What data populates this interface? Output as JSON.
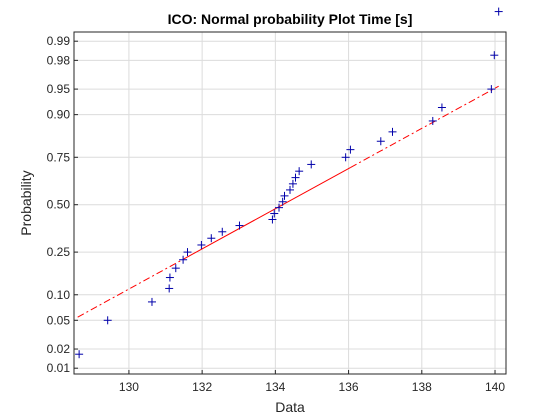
{
  "chart_data": {
    "type": "scatter",
    "title": "ICO: Normal probability Plot Time [s]",
    "xlabel": "Data",
    "ylabel": "Probability",
    "xlim": [
      128.5,
      140.3
    ],
    "ylim_probability": [
      0.008,
      0.993
    ],
    "y_scale": "normal-probability",
    "grid": true,
    "x_ticks": [
      130,
      132,
      134,
      136,
      138,
      140
    ],
    "x_tick_labels": [
      "130",
      "132",
      "134",
      "136",
      "138",
      "140"
    ],
    "y_ticks": [
      0.01,
      0.02,
      0.05,
      0.1,
      0.25,
      0.5,
      0.75,
      0.9,
      0.95,
      0.98,
      0.99
    ],
    "y_tick_labels": [
      "0.01",
      "0.02",
      "0.05",
      "0.10",
      "0.25",
      "0.50",
      "0.75",
      "0.90",
      "0.95",
      "0.98",
      "0.99"
    ],
    "points": [
      {
        "x": 128.64,
        "p": 0.0167
      },
      {
        "x": 129.42,
        "p": 0.05
      },
      {
        "x": 130.63,
        "p": 0.0833
      },
      {
        "x": 131.1,
        "p": 0.1167
      },
      {
        "x": 131.12,
        "p": 0.15
      },
      {
        "x": 131.28,
        "p": 0.1833
      },
      {
        "x": 131.48,
        "p": 0.2167
      },
      {
        "x": 131.6,
        "p": 0.25
      },
      {
        "x": 131.98,
        "p": 0.2833
      },
      {
        "x": 132.25,
        "p": 0.3167
      },
      {
        "x": 132.55,
        "p": 0.35
      },
      {
        "x": 133.02,
        "p": 0.3833
      },
      {
        "x": 133.92,
        "p": 0.4167
      },
      {
        "x": 133.97,
        "p": 0.45
      },
      {
        "x": 134.1,
        "p": 0.4833
      },
      {
        "x": 134.2,
        "p": 0.5167
      },
      {
        "x": 134.25,
        "p": 0.55
      },
      {
        "x": 134.4,
        "p": 0.5833
      },
      {
        "x": 134.48,
        "p": 0.6167
      },
      {
        "x": 134.55,
        "p": 0.65
      },
      {
        "x": 134.65,
        "p": 0.6833
      },
      {
        "x": 134.98,
        "p": 0.7167
      },
      {
        "x": 135.92,
        "p": 0.75
      },
      {
        "x": 136.05,
        "p": 0.7833
      },
      {
        "x": 136.88,
        "p": 0.8167
      },
      {
        "x": 137.2,
        "p": 0.85
      },
      {
        "x": 138.3,
        "p": 0.8833
      },
      {
        "x": 138.55,
        "p": 0.9167
      },
      {
        "x": 139.9,
        "p": 0.95
      },
      {
        "x": 139.98,
        "p": 0.9833
      },
      {
        "x": 140.1,
        "p": 0.997
      }
    ],
    "reference_line": {
      "mean": 134.2,
      "std": 3.5,
      "solid_x_range": [
        131.6,
        136.05
      ],
      "extended_x_range": [
        128.6,
        140.1
      ]
    },
    "colors": {
      "points": "#0000aa",
      "reference_line": "#ff0000",
      "grid": "#dcdcdc",
      "axes": "#262626"
    }
  }
}
